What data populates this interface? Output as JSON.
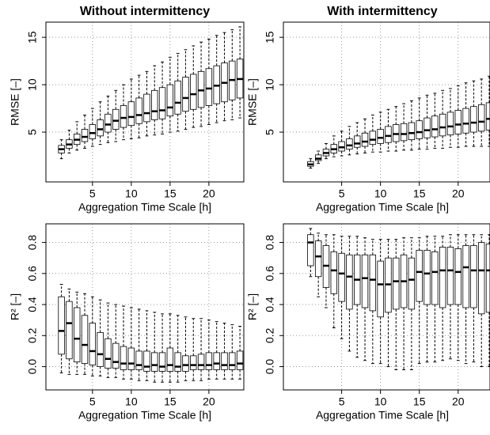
{
  "chart_data": [
    {
      "type": "box",
      "title": "Without intermittency",
      "xlabel": "Aggregation Time Scale [h]",
      "ylabel": "RMSE [–]",
      "x": [
        1,
        2,
        3,
        4,
        5,
        6,
        7,
        8,
        9,
        10,
        11,
        12,
        13,
        14,
        15,
        16,
        17,
        18,
        19,
        20,
        21,
        22,
        23,
        24
      ],
      "whislo": [
        2.2,
        2.8,
        3.1,
        3.3,
        3.5,
        3.7,
        3.9,
        4.0,
        4.2,
        4.3,
        4.4,
        4.6,
        4.7,
        4.8,
        5.0,
        5.1,
        5.3,
        5.5,
        5.6,
        5.8,
        6.0,
        6.2,
        6.3,
        6.5
      ],
      "q1": [
        2.8,
        3.3,
        3.7,
        4.0,
        4.3,
        4.6,
        5.0,
        5.3,
        5.5,
        5.7,
        5.9,
        6.1,
        6.3,
        6.4,
        6.7,
        6.9,
        7.2,
        7.4,
        7.6,
        7.8,
        8.0,
        8.2,
        8.4,
        8.6
      ],
      "median": [
        3.2,
        3.7,
        4.2,
        4.5,
        4.9,
        5.3,
        5.8,
        6.2,
        6.5,
        6.6,
        6.8,
        7.0,
        7.2,
        7.3,
        7.6,
        8.1,
        8.6,
        9.0,
        9.4,
        9.6,
        9.9,
        10.2,
        10.5,
        10.6
      ],
      "q3": [
        3.6,
        4.2,
        4.8,
        5.3,
        5.8,
        6.3,
        6.9,
        7.4,
        7.8,
        8.2,
        8.6,
        9.0,
        9.4,
        9.7,
        10.0,
        10.4,
        10.8,
        11.1,
        11.4,
        11.7,
        12.0,
        12.3,
        12.5,
        12.7
      ],
      "whishi": [
        4.2,
        5.2,
        6.1,
        6.8,
        7.5,
        8.2,
        8.8,
        9.4,
        10.0,
        10.6,
        11.0,
        11.4,
        12.0,
        12.4,
        12.9,
        13.3,
        13.7,
        14.1,
        14.5,
        14.8,
        15.2,
        15.5,
        15.8,
        16.1
      ],
      "xlim": [
        -1,
        24.5
      ],
      "ylim": [
        -0.25,
        16.6
      ],
      "xticks": [
        5,
        10,
        15,
        20
      ],
      "yticks": [
        5,
        10,
        15
      ],
      "grid": true
    },
    {
      "type": "box",
      "title": "With intermittency",
      "xlabel": "Aggregation Time Scale [h]",
      "ylabel": "RMSE [–]",
      "x": [
        1,
        2,
        3,
        4,
        5,
        6,
        7,
        8,
        9,
        10,
        11,
        12,
        13,
        14,
        15,
        16,
        17,
        18,
        19,
        20,
        21,
        22,
        23,
        24
      ],
      "whislo": [
        1.2,
        1.7,
        2.2,
        2.4,
        2.5,
        2.6,
        2.7,
        2.8,
        2.9,
        2.9,
        3.0,
        3.0,
        3.1,
        3.1,
        3.2,
        3.2,
        3.3,
        3.3,
        3.4,
        3.4,
        3.5,
        3.5,
        3.5,
        3.5
      ],
      "q1": [
        1.4,
        2.0,
        2.5,
        2.8,
        3.0,
        3.2,
        3.4,
        3.5,
        3.7,
        3.8,
        3.9,
        4.0,
        4.1,
        4.2,
        4.3,
        4.4,
        4.5,
        4.6,
        4.7,
        4.8,
        4.9,
        5.0,
        5.1,
        5.2
      ],
      "median": [
        1.6,
        2.2,
        2.8,
        3.2,
        3.4,
        3.6,
        3.8,
        4.0,
        4.2,
        4.4,
        4.6,
        4.8,
        4.8,
        4.9,
        5.0,
        5.2,
        5.3,
        5.5,
        5.6,
        5.8,
        5.9,
        6.0,
        6.1,
        6.4
      ],
      "q3": [
        1.9,
        2.6,
        3.2,
        3.7,
        4.0,
        4.3,
        4.6,
        4.9,
        5.1,
        5.3,
        5.6,
        5.8,
        5.9,
        6.0,
        6.2,
        6.5,
        6.7,
        6.9,
        7.1,
        7.3,
        7.5,
        7.7,
        7.9,
        8.1
      ],
      "whishi": [
        2.2,
        3.0,
        3.8,
        4.6,
        5.1,
        5.6,
        6.0,
        6.4,
        6.8,
        7.1,
        7.4,
        7.7,
        8.0,
        8.3,
        8.6,
        8.9,
        9.1,
        9.4,
        9.6,
        9.9,
        10.2,
        10.4,
        10.6,
        10.9
      ],
      "xlim": [
        -2.5,
        24.1
      ],
      "ylim": [
        -0.25,
        16.6
      ],
      "xticks": [
        5,
        10,
        15,
        20
      ],
      "yticks": [
        5,
        10,
        15
      ],
      "grid": true
    },
    {
      "type": "box",
      "xlabel": "Aggregation Time Scale [h]",
      "ylabel": "R² [–]",
      "x": [
        1,
        2,
        3,
        4,
        5,
        6,
        7,
        8,
        9,
        10,
        11,
        12,
        13,
        14,
        15,
        16,
        17,
        18,
        19,
        20,
        21,
        22,
        23,
        24
      ],
      "whislo": [
        -0.04,
        -0.05,
        -0.05,
        -0.05,
        -0.06,
        -0.06,
        -0.07,
        -0.07,
        -0.08,
        -0.08,
        -0.09,
        -0.09,
        -0.1,
        -0.1,
        -0.1,
        -0.1,
        -0.09,
        -0.09,
        -0.09,
        -0.08,
        -0.08,
        -0.08,
        -0.08,
        -0.08
      ],
      "q1": [
        0.08,
        0.05,
        0.03,
        0.02,
        0.01,
        0.0,
        -0.01,
        -0.01,
        -0.02,
        -0.02,
        -0.02,
        -0.03,
        -0.03,
        -0.03,
        -0.03,
        -0.03,
        -0.03,
        -0.02,
        -0.02,
        -0.02,
        -0.02,
        -0.02,
        -0.02,
        -0.02
      ],
      "median": [
        0.23,
        0.28,
        0.18,
        0.14,
        0.1,
        0.08,
        0.05,
        0.03,
        0.02,
        0.02,
        0.01,
        0.0,
        0.01,
        0.0,
        0.01,
        0.0,
        0.01,
        0.01,
        0.01,
        0.01,
        0.02,
        0.01,
        0.01,
        0.02
      ],
      "q3": [
        0.45,
        0.42,
        0.38,
        0.33,
        0.28,
        0.22,
        0.18,
        0.15,
        0.13,
        0.12,
        0.1,
        0.1,
        0.09,
        0.09,
        0.12,
        0.09,
        0.07,
        0.07,
        0.08,
        0.09,
        0.09,
        0.09,
        0.09,
        0.1
      ],
      "whishi": [
        0.53,
        0.5,
        0.48,
        0.47,
        0.45,
        0.43,
        0.41,
        0.4,
        0.39,
        0.38,
        0.37,
        0.36,
        0.35,
        0.34,
        0.34,
        0.33,
        0.32,
        0.31,
        0.31,
        0.3,
        0.29,
        0.28,
        0.27,
        0.26
      ],
      "xlim": [
        -1,
        24.5
      ],
      "ylim": [
        -0.15,
        0.92
      ],
      "xticks": [
        5,
        10,
        15,
        20
      ],
      "yticks": [
        {
          "value": 0,
          "label": "0.0"
        },
        0.2,
        0.4,
        0.6,
        0.8
      ],
      "grid": true
    },
    {
      "type": "box",
      "xlabel": "Aggregation Time Scale [h]",
      "ylabel": "R² [–]",
      "x": [
        1,
        2,
        3,
        4,
        5,
        6,
        7,
        8,
        9,
        10,
        11,
        12,
        13,
        14,
        15,
        16,
        17,
        18,
        19,
        20,
        21,
        22,
        23,
        24
      ],
      "whislo": [
        0.58,
        0.45,
        0.38,
        0.25,
        0.18,
        0.1,
        0.06,
        0.04,
        0.02,
        0.02,
        0.0,
        -0.02,
        -0.02,
        -0.02,
        0.02,
        0.03,
        0.03,
        0.04,
        0.05,
        0.04,
        0.02,
        0.03,
        0.0,
        0.0
      ],
      "q1": [
        0.65,
        0.58,
        0.51,
        0.47,
        0.42,
        0.37,
        0.4,
        0.38,
        0.36,
        0.32,
        0.35,
        0.37,
        0.38,
        0.37,
        0.42,
        0.4,
        0.4,
        0.38,
        0.4,
        0.4,
        0.38,
        0.38,
        0.34,
        0.35
      ],
      "median": [
        0.8,
        0.71,
        0.65,
        0.62,
        0.6,
        0.58,
        0.56,
        0.57,
        0.56,
        0.53,
        0.53,
        0.55,
        0.55,
        0.56,
        0.61,
        0.6,
        0.61,
        0.62,
        0.62,
        0.61,
        0.64,
        0.62,
        0.62,
        0.62
      ],
      "q3": [
        0.85,
        0.81,
        0.78,
        0.74,
        0.73,
        0.72,
        0.72,
        0.72,
        0.72,
        0.68,
        0.7,
        0.7,
        0.72,
        0.7,
        0.75,
        0.75,
        0.74,
        0.77,
        0.77,
        0.76,
        0.78,
        0.78,
        0.8,
        0.79
      ],
      "whishi": [
        0.89,
        0.86,
        0.85,
        0.85,
        0.84,
        0.84,
        0.84,
        0.83,
        0.82,
        0.82,
        0.82,
        0.82,
        0.83,
        0.83,
        0.83,
        0.84,
        0.84,
        0.84,
        0.85,
        0.85,
        0.85,
        0.85,
        0.85,
        0.85
      ],
      "xlim": [
        -2.5,
        24.1
      ],
      "ylim": [
        -0.15,
        0.92
      ],
      "xticks": [
        5,
        10,
        15,
        20
      ],
      "yticks": [
        {
          "value": 0,
          "label": "0.0"
        },
        0.2,
        0.4,
        0.6,
        0.8
      ],
      "grid": true
    }
  ]
}
